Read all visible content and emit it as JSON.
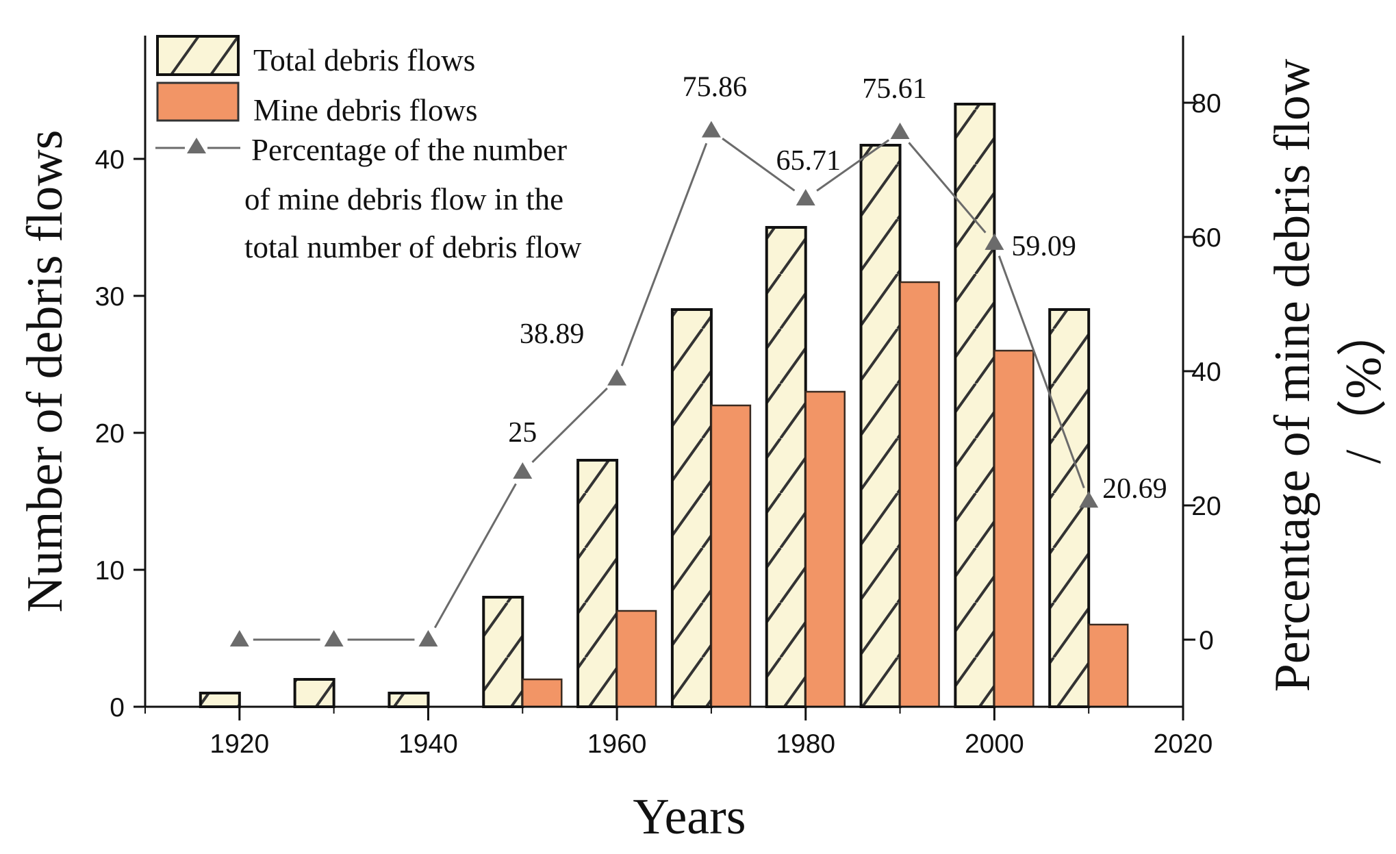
{
  "chart_data": {
    "type": "bar",
    "title": "",
    "xlabel": "Years",
    "ylabel": "Number of debris flows",
    "y2label_line1": "Percentage of mine debris flow",
    "y2label_line2": "/（%）",
    "xlim": [
      1910,
      2020
    ],
    "ylim": [
      0,
      49
    ],
    "y2lim": [
      -10,
      90
    ],
    "grid": false,
    "legend_position": "upper-left",
    "categories": [
      1920,
      1930,
      1940,
      1950,
      1960,
      1970,
      1980,
      1990,
      2000,
      2010
    ],
    "series": [
      {
        "name": "Total debris flows",
        "type": "bar",
        "axis": "left",
        "pattern": "hatched",
        "color": "#FAF5D7",
        "values": [
          1,
          2,
          1,
          8,
          18,
          29,
          35,
          41,
          44,
          29
        ]
      },
      {
        "name": "Mine debris flows",
        "type": "bar",
        "axis": "left",
        "color": "#F29566",
        "values": [
          0,
          0,
          0,
          2,
          7,
          22,
          23,
          31,
          26,
          6
        ]
      },
      {
        "name": "Percentage of the number of mine debris flow in the total number of debris flow",
        "type": "line",
        "axis": "right",
        "marker": "triangle",
        "color": "#6B6B6B",
        "values": [
          0,
          0,
          0,
          25,
          38.89,
          75.86,
          65.71,
          75.61,
          59.09,
          20.69
        ]
      }
    ],
    "data_labels": [
      {
        "year": 1950,
        "text": "25"
      },
      {
        "year": 1960,
        "text": "38.89"
      },
      {
        "year": 1970,
        "text": "75.86"
      },
      {
        "year": 1980,
        "text": "65.71"
      },
      {
        "year": 1990,
        "text": "75.61"
      },
      {
        "year": 2000,
        "text": "59.09"
      },
      {
        "year": 2010,
        "text": "20.69"
      }
    ],
    "x_ticks": [
      1920,
      1940,
      1960,
      1980,
      2000,
      2020
    ],
    "y_ticks": [
      0,
      10,
      20,
      30,
      40
    ],
    "y2_ticks": [
      0,
      20,
      40,
      60,
      80
    ]
  },
  "legend": {
    "items": [
      {
        "label_lines": [
          "Total debris flows"
        ]
      },
      {
        "label_lines": [
          "Mine debris flows"
        ]
      },
      {
        "label_lines": [
          "Percentage of the number",
          "of mine debris flow in the",
          "total number of debris flow"
        ]
      }
    ]
  },
  "colors": {
    "total_fill": "#FAF5D7",
    "mine_fill": "#F29566",
    "line": "#6B6B6B",
    "axis": "#111111"
  }
}
